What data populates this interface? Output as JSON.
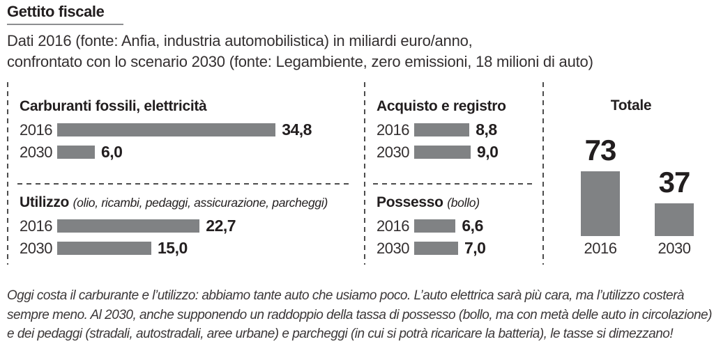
{
  "header": {
    "title": "Gettito fiscale",
    "subtitle_line1": "Dati 2016 (fonte: Anfia, industria automobilistica) in miliardi euro/anno,",
    "subtitle_line2": "confrontato con lo scenario 2030 (fonte: Legambiente,  zero emissioni, 18 milioni di auto)"
  },
  "panels": [
    {
      "title": "Carburanti fossili, elettricità",
      "note": "",
      "rows": [
        {
          "year": "2016",
          "value": 34.8,
          "label": "34,8"
        },
        {
          "year": "2030",
          "value": 6.0,
          "label": "6,0"
        }
      ]
    },
    {
      "title": "Utilizzo",
      "note": "(olio, ricambi, pedaggi, assicurazione, parcheggi)",
      "rows": [
        {
          "year": "2016",
          "value": 22.7,
          "label": "22,7"
        },
        {
          "year": "2030",
          "value": 15.0,
          "label": "15,0"
        }
      ]
    },
    {
      "title": "Acquisto e registro",
      "note": "",
      "rows": [
        {
          "year": "2016",
          "value": 8.8,
          "label": "8,8"
        },
        {
          "year": "2030",
          "value": 9.0,
          "label": "9,0"
        }
      ]
    },
    {
      "title": "Possesso",
      "note": "(bollo)",
      "rows": [
        {
          "year": "2016",
          "value": 6.6,
          "label": "6,6"
        },
        {
          "year": "2030",
          "value": 7.0,
          "label": "7,0"
        }
      ]
    }
  ],
  "totale": {
    "title": "Totale",
    "bars": [
      {
        "year": "2016",
        "value": 73,
        "label": "73"
      },
      {
        "year": "2030",
        "value": 37,
        "label": "37"
      }
    ]
  },
  "footer": {
    "text": "Oggi costa il carburante e l’utilizzo: abbiamo tante auto che usiamo poco. L’auto elettrica sarà più cara, ma l’utilizzo costerà\nsempre meno. Al 2030, anche supponendo un raddoppio della tassa di possesso (bollo, ma con metà delle auto in circolazione)\ne dei pedaggi (stradali, autostradali, aree urbane) e parcheggi (in cui si potrà ricaricare la batteria), le tasse si dimezzano!"
  },
  "colors": {
    "bar": "#808284",
    "heading_text": "#221e1f",
    "muted_text": "#332f30",
    "footer_text": "#3b3738",
    "dashed_line": "#4c4c4c",
    "title_underline": "#8d8e90"
  },
  "chart_data": [
    {
      "type": "bar",
      "orientation": "horizontal",
      "title": "Carburanti fossili, elettricità",
      "categories": [
        "2016",
        "2030"
      ],
      "values": [
        34.8,
        6.0
      ],
      "unit": "miliardi euro/anno",
      "data_labels": [
        "34,8",
        "6,0"
      ]
    },
    {
      "type": "bar",
      "orientation": "horizontal",
      "title": "Utilizzo (olio, ricambi, pedaggi, assicurazione, parcheggi)",
      "categories": [
        "2016",
        "2030"
      ],
      "values": [
        22.7,
        15.0
      ],
      "unit": "miliardi euro/anno",
      "data_labels": [
        "22,7",
        "15,0"
      ]
    },
    {
      "type": "bar",
      "orientation": "horizontal",
      "title": "Acquisto e registro",
      "categories": [
        "2016",
        "2030"
      ],
      "values": [
        8.8,
        9.0
      ],
      "unit": "miliardi euro/anno",
      "data_labels": [
        "8,8",
        "9,0"
      ]
    },
    {
      "type": "bar",
      "orientation": "horizontal",
      "title": "Possesso (bollo)",
      "categories": [
        "2016",
        "2030"
      ],
      "values": [
        6.6,
        7.0
      ],
      "unit": "miliardi euro/anno",
      "data_labels": [
        "6,6",
        "7,0"
      ]
    },
    {
      "type": "bar",
      "orientation": "vertical",
      "title": "Totale",
      "categories": [
        "2016",
        "2030"
      ],
      "values": [
        73,
        37
      ],
      "unit": "miliardi euro/anno",
      "data_labels": [
        "73",
        "37"
      ]
    }
  ]
}
